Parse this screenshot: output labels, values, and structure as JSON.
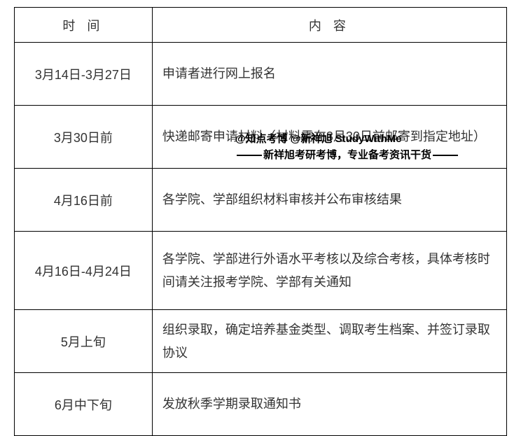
{
  "table": {
    "headers": {
      "time": "时 间",
      "content": "内 容"
    },
    "rows": [
      {
        "time": "3月14日-3月27日",
        "content": "申请者进行网上报名"
      },
      {
        "time": "3月30日前",
        "content": "快递邮寄申请材料（材料需在3月30日前邮寄到指定地址）"
      },
      {
        "time": "4月16日前",
        "content": "各学院、学部组织材料审核并公布审核结果"
      },
      {
        "time": "4月16日-4月24日",
        "content": "各学院、学部进行外语水平考核以及综合考核，具体考核时间请关注报考学院、学部有关通知"
      },
      {
        "time": "5月上旬",
        "content": "组织录取，确定培养基金类型、调取考生档案、并签订录取协议"
      },
      {
        "time": "6月中下旬",
        "content": "发放秋季学期录取通知书"
      }
    ]
  },
  "watermark": {
    "line1": "@知点考博  @新祥旭 StudyWithMe",
    "line2": "新祥旭考研考博，专业备考资讯干货"
  }
}
